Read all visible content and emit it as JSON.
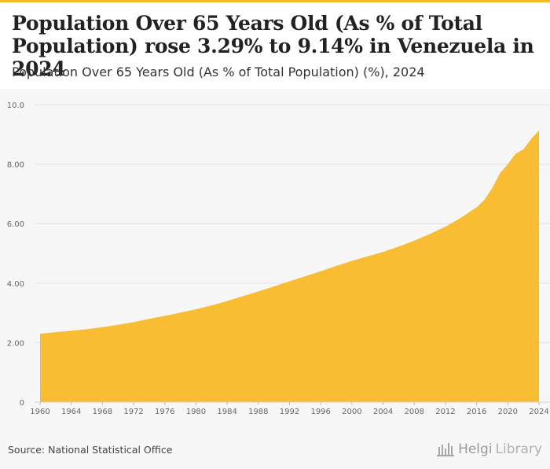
{
  "header": {
    "title_line1": "Population Over 65 Years Old (As % of Total",
    "title_line2": "Population) rose 3.29% to 9.14% in Venezuela in 2024",
    "subtitle": "Population Over 65 Years Old (As % of Total Population) (%), 2024"
  },
  "footer": {
    "source": "Source: National Statistical Office",
    "brand_part1": "Helgi",
    "brand_part2": "Library"
  },
  "colors": {
    "area_fill": "#f8bd33",
    "grid": "#e1e1e1",
    "top_bar": "#f6b822"
  },
  "brand_icon": "library-building-icon",
  "chart_data": {
    "type": "area",
    "title": "Population Over 65 Years Old (As % of Total Population) rose 3.29% to 9.14% in Venezuela in 2024",
    "subtitle": "Population Over 65 Years Old (As % of Total Population) (%), 2024",
    "xlabel": "",
    "ylabel": "",
    "xlim": [
      1960,
      2024
    ],
    "ylim": [
      0,
      10
    ],
    "y_ticks": [
      0,
      2,
      4,
      6,
      8,
      10
    ],
    "y_tick_labels": [
      "0",
      "2.00",
      "4.00",
      "6.00",
      "8.00",
      "10.0"
    ],
    "x_ticks": [
      1960,
      1964,
      1968,
      1972,
      1976,
      1980,
      1984,
      1988,
      1992,
      1996,
      2000,
      2004,
      2008,
      2012,
      2016,
      2020,
      2024
    ],
    "x_tick_labels": [
      "1960",
      "1964",
      "1968",
      "1972",
      "1976",
      "1980",
      "1984",
      "1988",
      "1992",
      "1996",
      "2000",
      "2004",
      "2008",
      "2012",
      "2016",
      "2020",
      "2024"
    ],
    "series": [
      {
        "name": "Population Over 65 Years Old (As % of Total Population) (%)",
        "x": [
          1960,
          1962,
          1964,
          1966,
          1968,
          1970,
          1972,
          1974,
          1976,
          1978,
          1980,
          1982,
          1984,
          1986,
          1988,
          1990,
          1992,
          1994,
          1996,
          1998,
          2000,
          2002,
          2004,
          2006,
          2008,
          2010,
          2012,
          2014,
          2016,
          2017,
          2018,
          2019,
          2020,
          2021,
          2022,
          2023,
          2024
        ],
        "values": [
          2.3,
          2.35,
          2.4,
          2.45,
          2.52,
          2.6,
          2.69,
          2.8,
          2.9,
          3.01,
          3.12,
          3.25,
          3.4,
          3.56,
          3.72,
          3.89,
          4.06,
          4.23,
          4.4,
          4.58,
          4.75,
          4.9,
          5.05,
          5.23,
          5.43,
          5.65,
          5.9,
          6.2,
          6.55,
          6.8,
          7.2,
          7.7,
          8.0,
          8.35,
          8.5,
          8.85,
          9.14
        ]
      }
    ],
    "grid": true,
    "legend": "none"
  }
}
